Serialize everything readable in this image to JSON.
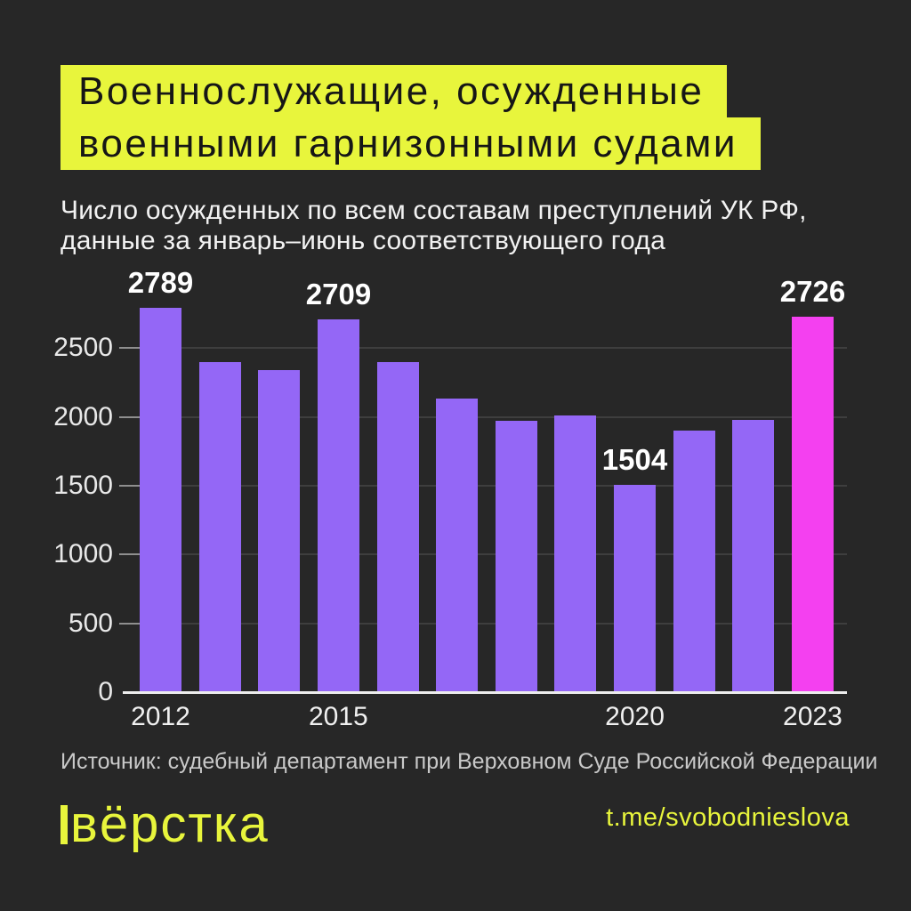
{
  "title": {
    "line1": "Военнослужащие, осужденные",
    "line2": "военными гарнизонными судами"
  },
  "subtitle": {
    "line1": "Число осужденных по всем составам преступлений УК РФ,",
    "line2": "данные за январь–июнь соответствующего года"
  },
  "chart_data": {
    "type": "bar",
    "categories": [
      "2012",
      "2013",
      "2014",
      "2015",
      "2016",
      "2017",
      "2018",
      "2019",
      "2020",
      "2021",
      "2022",
      "2023"
    ],
    "values": [
      2789,
      2395,
      2340,
      2709,
      2400,
      2130,
      1970,
      2008,
      1504,
      1898,
      1975,
      2726
    ],
    "value_labels": {
      "2012": "2789",
      "2015": "2709",
      "2020": "1504",
      "2023": "2726"
    },
    "x_tick_labels": [
      "2012",
      "2015",
      "2020",
      "2023"
    ],
    "y_ticks": [
      0,
      500,
      1000,
      1500,
      2000,
      2500
    ],
    "ylim": [
      0,
      2850
    ],
    "grid": true,
    "legend": false,
    "highlight_category": "2023",
    "bar_color": "#9467F6",
    "highlight_color": "#F440F0",
    "title": "Военнослужащие, осужденные военными гарнизонными судами",
    "xlabel": "",
    "ylabel": ""
  },
  "source": "Источник: судебный департамент при Верховном Суде Российской Федерации",
  "footer": {
    "logo": "вёрстка",
    "telegram": "t.me/svobodnieslova"
  },
  "colors": {
    "background": "#272727",
    "accent_yellow": "#E8F53C",
    "bar_purple": "#9467F6",
    "bar_pink": "#F440F0",
    "title_text": "#161616",
    "axis_text": "#E8E8E8",
    "grid_line": "#3E3E3E",
    "baseline": "#EDEDED",
    "source_text": "#C9C9C9"
  }
}
